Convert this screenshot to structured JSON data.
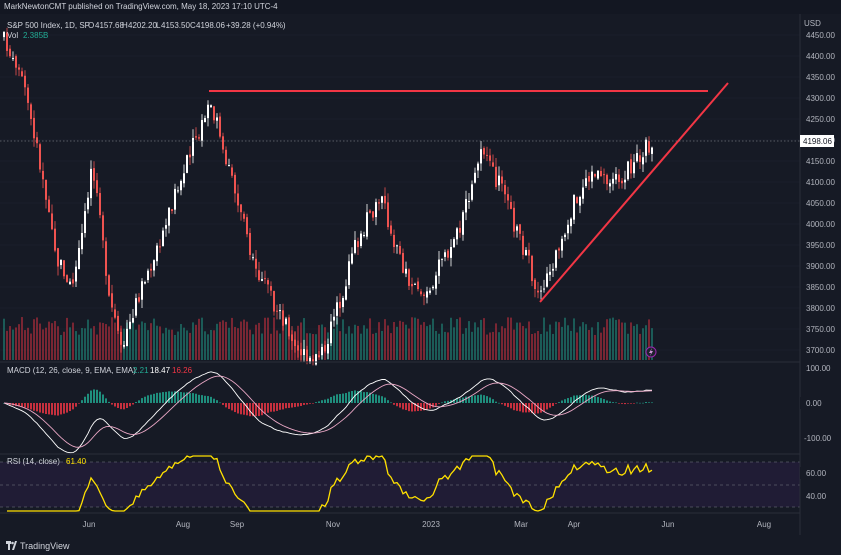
{
  "header": {
    "publisher": "MarkNewtonCMT published on TradingView.com, May 18, 2023 17:10 UTC-4"
  },
  "legend": {
    "symbol": "S&P 500 Index, 1D, SP",
    "open_label": "O",
    "open": "4157.68",
    "high_label": "H",
    "high": "4202.20",
    "low_label": "L",
    "low": "4153.50",
    "close_label": "C",
    "close": "4198.06",
    "change": "+39.28 (+0.94%)",
    "volume_label": "Vol",
    "volume": "2.385B"
  },
  "currency": "USD",
  "price_axis": {
    "ticks": [
      "4450.00",
      "4400.00",
      "4350.00",
      "4300.00",
      "4250.00",
      "4200.00",
      "4150.00",
      "4100.00",
      "4050.00",
      "4000.00",
      "3950.00",
      "3900.00",
      "3850.00",
      "3800.00",
      "3750.00",
      "3700.00"
    ],
    "last_price": "4198.06"
  },
  "macd": {
    "title": "MACD (12, 26, close, 9, EMA, EMA)",
    "v1": "2.21",
    "v2": "18.47",
    "v3": "16.26",
    "ticks": [
      "100.00",
      "0.00",
      "-100.00"
    ]
  },
  "rsi": {
    "title": "RSI (14, close)",
    "value": "61.40",
    "ticks": [
      "60.00",
      "40.00"
    ]
  },
  "time_axis": [
    "Jun",
    "Aug",
    "Sep",
    "Nov",
    "2023",
    "Mar",
    "Apr",
    "Jun",
    "Aug"
  ],
  "footer": {
    "brand": "TradingView"
  },
  "colors": {
    "background": "#161a25",
    "up": "#ffffff",
    "down": "#ef5350",
    "volume_up": "#22ab94",
    "volume_down": "#f23645",
    "macd_line": "#ffffff",
    "signal_line": "#e9a7c5",
    "rsi_line": "#ffe100",
    "trendline": "#f23645"
  },
  "icons": [
    "tradingview-logo-icon",
    "lightning-icon"
  ],
  "chart_data": {
    "type": "candlestick",
    "x": [
      "2022-05",
      "2022-06",
      "2022-07",
      "2022-08",
      "2022-09",
      "2022-10",
      "2022-11",
      "2022-12",
      "2023-01",
      "2023-02",
      "2023-03",
      "2023-04",
      "2023-05"
    ],
    "close_approx": [
      4100,
      3900,
      4130,
      4300,
      3700,
      3800,
      4050,
      3850,
      4070,
      3970,
      4100,
      4170,
      4198
    ],
    "annotations": {
      "horizontal_resistance": 4320,
      "rising_trendline_from": 3810,
      "rising_trendline_to": 4340
    },
    "ylim": [
      3680,
      4460
    ]
  }
}
